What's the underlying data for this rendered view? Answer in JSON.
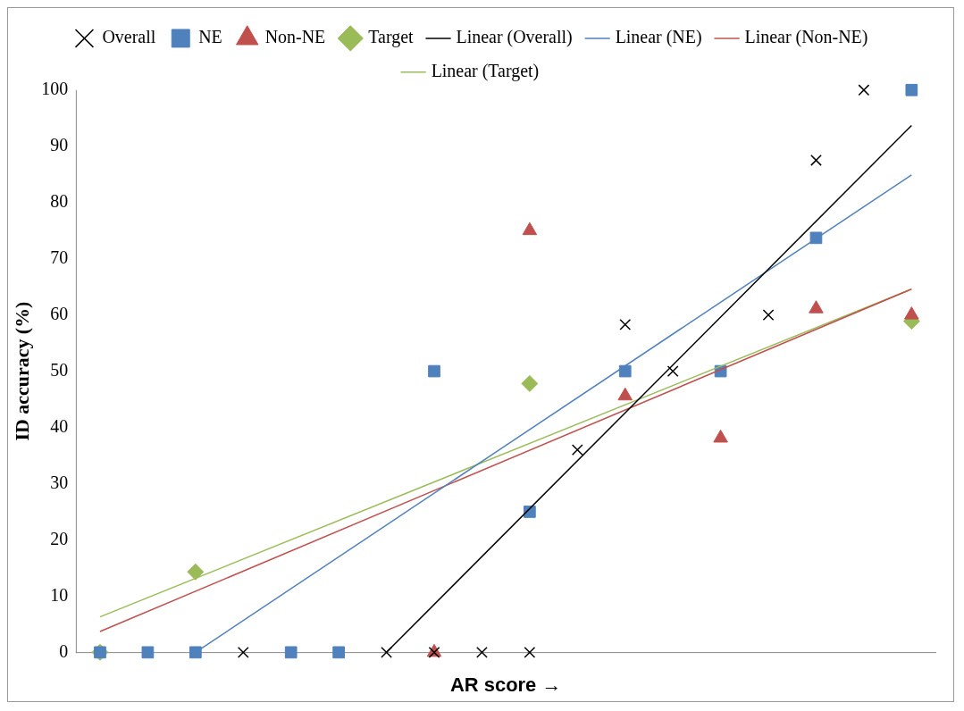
{
  "chart_data": {
    "type": "scatter",
    "xlabel": "AR score →",
    "ylabel": "ID accuracy (%)",
    "categories": [
      null,
      null,
      null,
      null,
      null,
      null,
      null,
      null,
      null,
      null,
      null,
      null,
      null,
      null,
      null,
      null,
      null,
      null
    ],
    "ylim": [
      0,
      100
    ],
    "yticks": [
      0,
      10,
      20,
      30,
      40,
      50,
      60,
      70,
      80,
      90,
      100
    ],
    "grid": false,
    "legend": "top",
    "series": [
      {
        "name": "Overall",
        "marker": "cross",
        "color": "#000000",
        "values": [
          null,
          null,
          null,
          0,
          null,
          null,
          0,
          0,
          0,
          0,
          36,
          58.3,
          50,
          null,
          60,
          87.5,
          100,
          null
        ]
      },
      {
        "name": "NE",
        "marker": "square",
        "color": "#4f81bd",
        "values": [
          0,
          0,
          0,
          null,
          0,
          0,
          null,
          50,
          null,
          25,
          null,
          50,
          null,
          50,
          null,
          73.7,
          null,
          100
        ]
      },
      {
        "name": "Non-NE",
        "marker": "triangle",
        "color": "#c0504d",
        "values": [
          null,
          null,
          null,
          null,
          null,
          null,
          null,
          0,
          null,
          75,
          null,
          45.6,
          null,
          38.1,
          null,
          61.1,
          null,
          60
        ]
      },
      {
        "name": "Target",
        "marker": "diamond",
        "color": "#9bbb59",
        "values": [
          0,
          null,
          14.3,
          null,
          null,
          null,
          null,
          null,
          null,
          47.8,
          null,
          null,
          null,
          null,
          null,
          null,
          null,
          58.9
        ]
      },
      {
        "name": "Linear (Overall)",
        "type": "line",
        "marker": "none",
        "color": "#000000",
        "values": [
          null,
          null,
          null,
          null,
          null,
          null,
          0,
          null,
          null,
          null,
          null,
          null,
          null,
          null,
          null,
          null,
          null,
          93.7
        ]
      },
      {
        "name": "Linear (NE)",
        "type": "line",
        "marker": "none",
        "color": "#4f81bd",
        "values": [
          null,
          null,
          0,
          null,
          null,
          null,
          null,
          null,
          null,
          null,
          null,
          null,
          null,
          null,
          null,
          null,
          null,
          84.9
        ]
      },
      {
        "name": "Linear (Non-NE)",
        "type": "line",
        "marker": "none",
        "color": "#c0504d",
        "values": [
          3.7,
          null,
          null,
          null,
          null,
          null,
          null,
          null,
          null,
          null,
          null,
          null,
          null,
          null,
          null,
          null,
          null,
          64.6
        ]
      },
      {
        "name": "Linear (Target)",
        "type": "line",
        "marker": "none",
        "color": "#9bbb59",
        "values": [
          6.3,
          null,
          null,
          null,
          null,
          null,
          null,
          null,
          null,
          null,
          null,
          null,
          null,
          null,
          null,
          null,
          null,
          64.6
        ]
      }
    ]
  }
}
